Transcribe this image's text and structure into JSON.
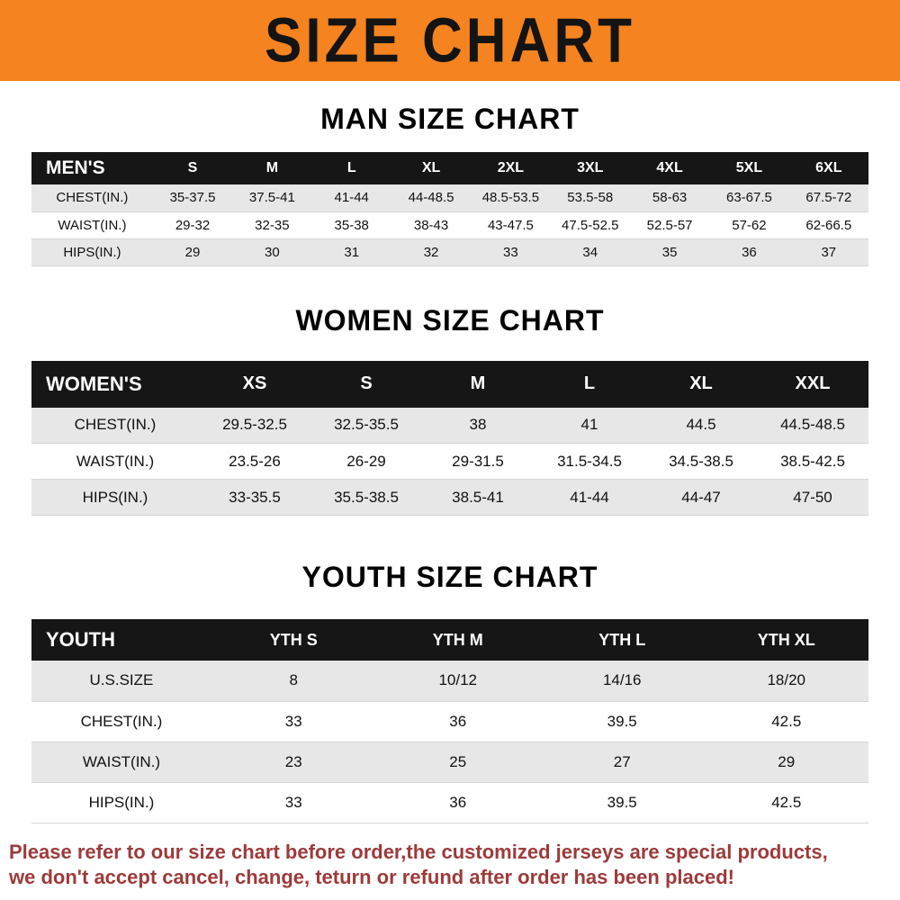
{
  "banner": {
    "title": "SIZE CHART"
  },
  "colors": {
    "banner_bg": "#f5831f",
    "table_header_bg": "#161616",
    "stripe": "#e7e7e7",
    "footer_text": "#9d3a3a"
  },
  "sections": [
    {
      "id": "men",
      "heading": "MAN SIZE CHART",
      "columns": [
        "MEN'S",
        "S",
        "M",
        "L",
        "XL",
        "2XL",
        "3XL",
        "4XL",
        "5XL",
        "6XL"
      ],
      "rows": [
        [
          "CHEST(IN.)",
          "35-37.5",
          "37.5-41",
          "41-44",
          "44-48.5",
          "48.5-53.5",
          "53.5-58",
          "58-63",
          "63-67.5",
          "67.5-72"
        ],
        [
          "WAIST(IN.)",
          "29-32",
          "32-35",
          "35-38",
          "38-43",
          "43-47.5",
          "47.5-52.5",
          "52.5-57",
          "57-62",
          "62-66.5"
        ],
        [
          "HIPS(IN.)",
          "29",
          "30",
          "31",
          "32",
          "33",
          "34",
          "35",
          "36",
          "37"
        ]
      ]
    },
    {
      "id": "women",
      "heading": "WOMEN SIZE CHART",
      "columns": [
        "WOMEN'S",
        "XS",
        "S",
        "M",
        "L",
        "XL",
        "XXL"
      ],
      "rows": [
        [
          "CHEST(IN.)",
          "29.5-32.5",
          "32.5-35.5",
          "38",
          "41",
          "44.5",
          "44.5-48.5"
        ],
        [
          "WAIST(IN.)",
          "23.5-26",
          "26-29",
          "29-31.5",
          "31.5-34.5",
          "34.5-38.5",
          "38.5-42.5"
        ],
        [
          "HIPS(IN.)",
          "33-35.5",
          "35.5-38.5",
          "38.5-41",
          "41-44",
          "44-47",
          "47-50"
        ]
      ]
    },
    {
      "id": "youth",
      "heading": "YOUTH SIZE CHART",
      "columns": [
        "YOUTH",
        "YTH S",
        "YTH M",
        "YTH L",
        "YTH XL"
      ],
      "rows": [
        [
          "U.S.SIZE",
          "8",
          "10/12",
          "14/16",
          "18/20"
        ],
        [
          "CHEST(IN.)",
          "33",
          "36",
          "39.5",
          "42.5"
        ],
        [
          "WAIST(IN.)",
          "23",
          "25",
          "27",
          "29"
        ],
        [
          "HIPS(IN.)",
          "33",
          "36",
          "39.5",
          "42.5"
        ]
      ]
    }
  ],
  "footer": {
    "line1": "Please refer to our size chart before order,the customized jerseys are special products,",
    "line2": "we don't accept cancel, change, teturn or refund after order has been placed!"
  }
}
